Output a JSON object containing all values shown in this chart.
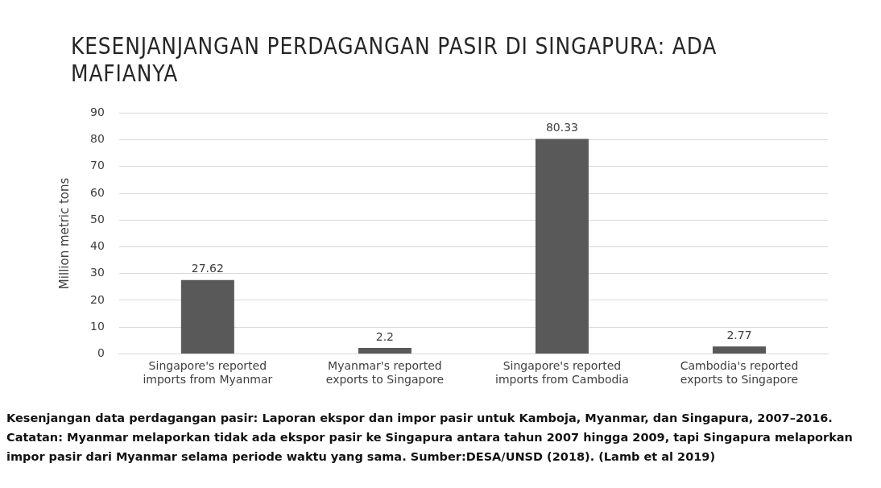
{
  "chart_data": {
    "type": "bar",
    "title": "KESENJANJANGAN PERDAGANGAN PASIR DI SINGAPURA: ADA MAFIANYA",
    "ylabel": "Million metric tons",
    "categories": [
      "Singapore's reported imports from Myanmar",
      "Myanmar's reported exports to Singapore",
      "Singapore's reported imports from Cambodia",
      "Cambodia's reported exports to Singapore"
    ],
    "values": [
      27.62,
      2.2,
      80.33,
      2.77
    ],
    "color": "#595959",
    "ylim": [
      0,
      90
    ],
    "yticks": [
      0,
      10,
      20,
      30,
      40,
      50,
      60,
      70,
      80,
      90
    ],
    "grid": "y",
    "data_labels": true,
    "legend": false,
    "annotations": [
      "Kesenjangan data perdagangan pasir: Laporan ekspor dan impor pasir untuk Kamboja, Myanmar, dan Singapura, 2007–2016. Catatan: Myanmar melaporkan tidak ada ekspor pasir ke Singapura antara tahun 2007 hingga 2009, tapi Singapura melaporkan impor pasir dari Myanmar selama periode waktu yang sama. Sumber:DESA/UNSD (2018). (Lamb et al 2019)"
    ]
  }
}
